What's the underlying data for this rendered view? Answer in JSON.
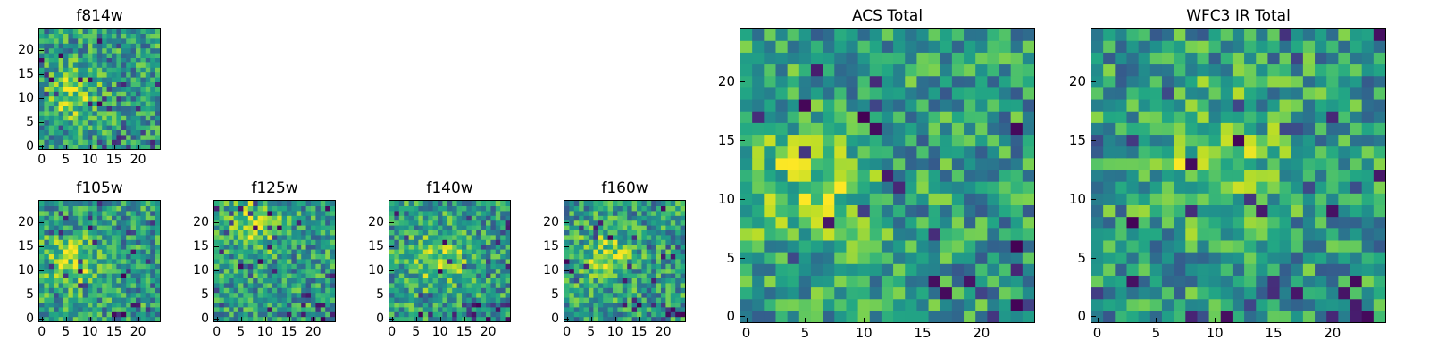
{
  "chart_data": [
    {
      "id": "f814w",
      "type": "heatmap",
      "title": "f814w",
      "grid": [
        25,
        25
      ],
      "xticks": [
        0,
        5,
        10,
        15,
        20
      ],
      "yticks": [
        0,
        5,
        10,
        15,
        20
      ],
      "xlim": [
        -0.5,
        24.5
      ],
      "ylim": [
        -0.5,
        24.5
      ],
      "colormap": "viridis",
      "seed": 814,
      "bright_spot": [
        6,
        11
      ]
    },
    {
      "id": "f105w",
      "type": "heatmap",
      "title": "f105w",
      "grid": [
        25,
        25
      ],
      "xticks": [
        0,
        5,
        10,
        15,
        20
      ],
      "yticks": [
        0,
        5,
        10,
        15,
        20
      ],
      "xlim": [
        -0.5,
        24.5
      ],
      "ylim": [
        -0.5,
        24.5
      ],
      "colormap": "viridis",
      "seed": 105,
      "bright_spot": [
        6,
        12
      ]
    },
    {
      "id": "f125w",
      "type": "heatmap",
      "title": "f125w",
      "grid": [
        25,
        25
      ],
      "xticks": [
        0,
        5,
        10,
        15,
        20
      ],
      "yticks": [
        0,
        5,
        10,
        15,
        20
      ],
      "xlim": [
        -0.5,
        24.5
      ],
      "ylim": [
        -0.5,
        24.5
      ],
      "colormap": "viridis",
      "seed": 125,
      "bright_spot": [
        8,
        20
      ]
    },
    {
      "id": "f140w",
      "type": "heatmap",
      "title": "f140w",
      "grid": [
        25,
        25
      ],
      "xticks": [
        0,
        5,
        10,
        15,
        20
      ],
      "yticks": [
        0,
        5,
        10,
        15,
        20
      ],
      "xlim": [
        -0.5,
        24.5
      ],
      "ylim": [
        -0.5,
        24.5
      ],
      "colormap": "viridis",
      "seed": 140,
      "bright_spot": [
        10,
        12
      ]
    },
    {
      "id": "f160w",
      "type": "heatmap",
      "title": "f160w",
      "grid": [
        25,
        25
      ],
      "xticks": [
        0,
        5,
        10,
        15,
        20
      ],
      "yticks": [
        0,
        5,
        10,
        15,
        20
      ],
      "xlim": [
        -0.5,
        24.5
      ],
      "ylim": [
        -0.5,
        24.5
      ],
      "colormap": "viridis",
      "seed": 160,
      "bright_spot": [
        8,
        13
      ]
    },
    {
      "id": "acs",
      "type": "heatmap",
      "title": "ACS Total",
      "grid": [
        25,
        25
      ],
      "xticks": [
        0,
        5,
        10,
        15,
        20
      ],
      "yticks": [
        0,
        5,
        10,
        15,
        20
      ],
      "xlim": [
        -0.5,
        24.5
      ],
      "ylim": [
        -0.5,
        24.5
      ],
      "colormap": "viridis",
      "seed": 31,
      "bright_spot": [
        6,
        11
      ]
    },
    {
      "id": "wfc3",
      "type": "heatmap",
      "title": "WFC3 IR Total",
      "grid": [
        25,
        25
      ],
      "xticks": [
        0,
        5,
        10,
        15,
        20
      ],
      "yticks": [
        0,
        5,
        10,
        15,
        20
      ],
      "xlim": [
        -0.5,
        24.5
      ],
      "ylim": [
        -0.5,
        24.5
      ],
      "colormap": "viridis",
      "seed": 47,
      "bright_spot": [
        10,
        13
      ]
    }
  ]
}
